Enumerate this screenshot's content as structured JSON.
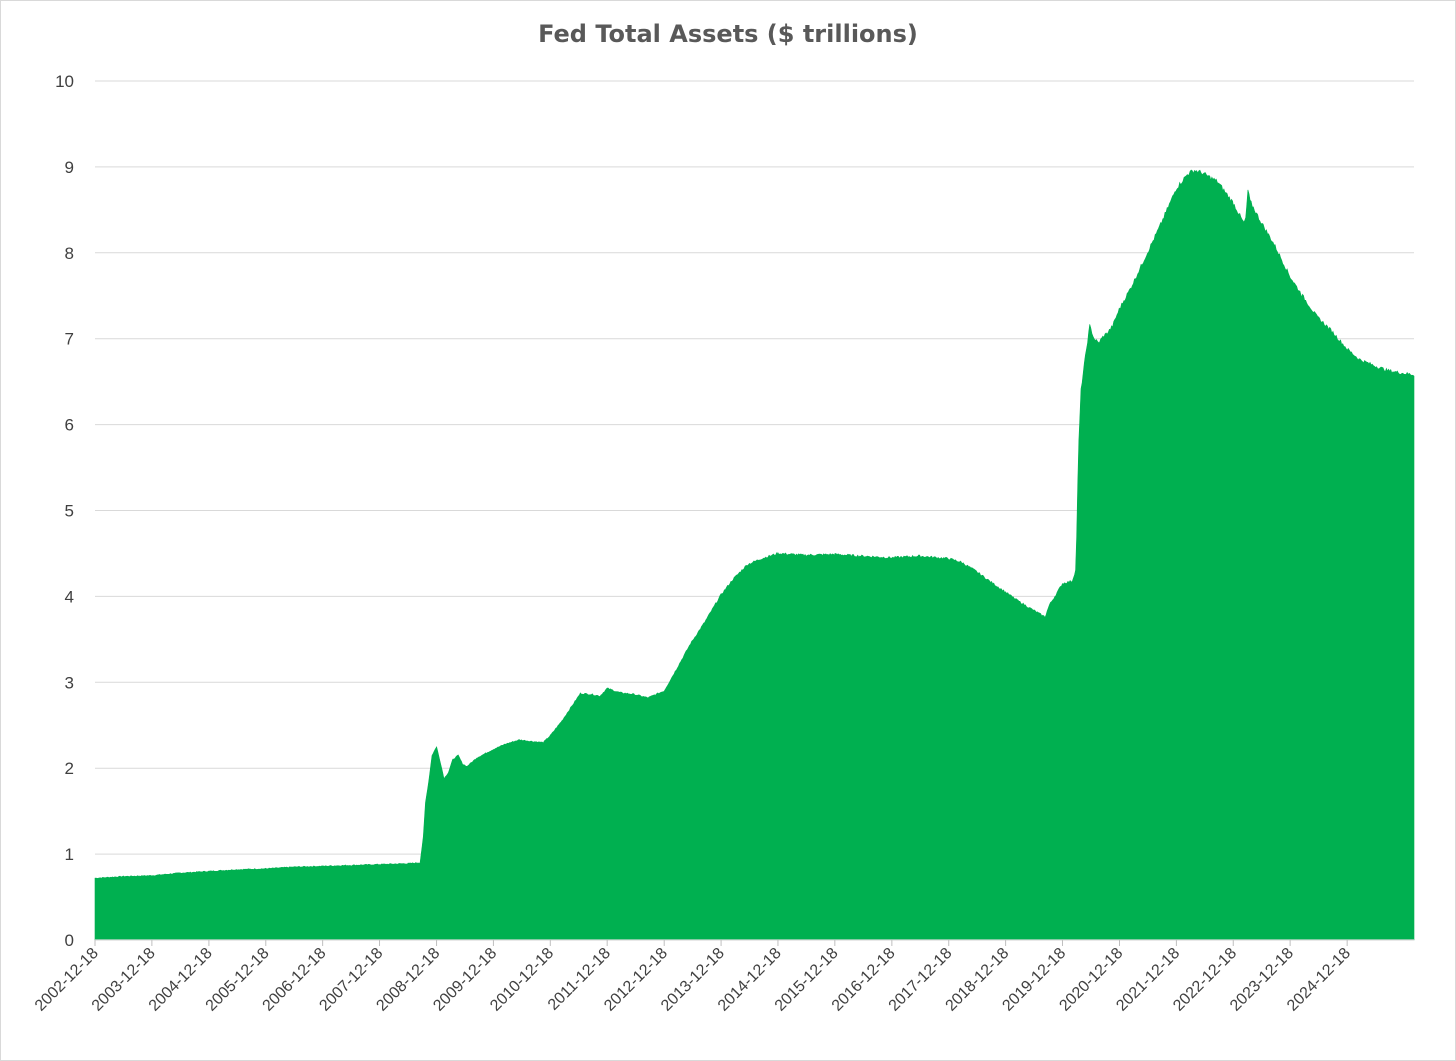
{
  "chart_data": {
    "type": "area",
    "title": "Fed Total Assets ($ trillions)",
    "xlabel": "",
    "ylabel": "",
    "ylim": [
      0,
      10
    ],
    "y_ticks": [
      "0",
      "1",
      "2",
      "3",
      "4",
      "5",
      "6",
      "7",
      "8",
      "9",
      "10"
    ],
    "x_ticks": [
      "2002-12-18",
      "2003-12-18",
      "2004-12-18",
      "2005-12-18",
      "2006-12-18",
      "2007-12-18",
      "2008-12-18",
      "2009-12-18",
      "2010-12-18",
      "2011-12-18",
      "2012-12-18",
      "2013-12-18",
      "2014-12-18",
      "2015-12-18",
      "2016-12-18",
      "2017-12-18",
      "2018-12-18",
      "2019-12-18",
      "2020-12-18",
      "2021-12-18",
      "2022-12-18",
      "2023-12-18",
      "2024-12-18"
    ],
    "x_range": [
      "2002-12-18",
      "2026-02-20"
    ],
    "grid": "horizontal",
    "legend": "none",
    "color": "#00b050",
    "series": [
      {
        "name": "",
        "points": [
          [
            "2002-12-18",
            0.72
          ],
          [
            "2003-06-18",
            0.74
          ],
          [
            "2003-12-18",
            0.75
          ],
          [
            "2004-06-18",
            0.78
          ],
          [
            "2004-12-18",
            0.8
          ],
          [
            "2005-06-18",
            0.82
          ],
          [
            "2005-12-18",
            0.83
          ],
          [
            "2006-06-18",
            0.85
          ],
          [
            "2006-12-18",
            0.86
          ],
          [
            "2007-06-18",
            0.87
          ],
          [
            "2007-12-18",
            0.88
          ],
          [
            "2008-06-18",
            0.89
          ],
          [
            "2008-09-03",
            0.9
          ],
          [
            "2008-09-24",
            1.2
          ],
          [
            "2008-10-08",
            1.6
          ],
          [
            "2008-10-29",
            1.85
          ],
          [
            "2008-11-19",
            2.15
          ],
          [
            "2008-12-18",
            2.25
          ],
          [
            "2009-01-14",
            2.05
          ],
          [
            "2009-02-04",
            1.88
          ],
          [
            "2009-03-04",
            1.95
          ],
          [
            "2009-04-01",
            2.1
          ],
          [
            "2009-05-06",
            2.15
          ],
          [
            "2009-06-03",
            2.05
          ],
          [
            "2009-07-01",
            2.02
          ],
          [
            "2009-09-02",
            2.12
          ],
          [
            "2009-12-18",
            2.22
          ],
          [
            "2010-03-03",
            2.28
          ],
          [
            "2010-06-02",
            2.33
          ],
          [
            "2010-09-01",
            2.31
          ],
          [
            "2010-11-03",
            2.3
          ],
          [
            "2010-12-18",
            2.38
          ],
          [
            "2011-03-02",
            2.55
          ],
          [
            "2011-05-04",
            2.72
          ],
          [
            "2011-06-29",
            2.87
          ],
          [
            "2011-09-07",
            2.86
          ],
          [
            "2011-11-02",
            2.84
          ],
          [
            "2011-12-18",
            2.93
          ],
          [
            "2012-03-07",
            2.88
          ],
          [
            "2012-06-06",
            2.86
          ],
          [
            "2012-09-05",
            2.82
          ],
          [
            "2012-12-18",
            2.9
          ],
          [
            "2013-03-06",
            3.15
          ],
          [
            "2013-06-05",
            3.45
          ],
          [
            "2013-09-04",
            3.7
          ],
          [
            "2013-12-18",
            4.02
          ],
          [
            "2014-03-05",
            4.2
          ],
          [
            "2014-06-04",
            4.37
          ],
          [
            "2014-09-03",
            4.44
          ],
          [
            "2014-12-18",
            4.5
          ],
          [
            "2015-06-03",
            4.48
          ],
          [
            "2015-12-18",
            4.49
          ],
          [
            "2016-06-01",
            4.47
          ],
          [
            "2016-12-18",
            4.45
          ],
          [
            "2017-06-07",
            4.47
          ],
          [
            "2017-12-18",
            4.44
          ],
          [
            "2018-03-07",
            4.4
          ],
          [
            "2018-06-06",
            4.3
          ],
          [
            "2018-09-05",
            4.18
          ],
          [
            "2018-12-18",
            4.05
          ],
          [
            "2019-03-06",
            3.95
          ],
          [
            "2019-06-05",
            3.85
          ],
          [
            "2019-08-28",
            3.76
          ],
          [
            "2019-09-25",
            3.9
          ],
          [
            "2019-10-30",
            4.0
          ],
          [
            "2019-12-18",
            4.15
          ],
          [
            "2020-02-19",
            4.18
          ],
          [
            "2020-03-11",
            4.3
          ],
          [
            "2020-03-18",
            4.7
          ],
          [
            "2020-03-25",
            5.3
          ],
          [
            "2020-04-01",
            5.8
          ],
          [
            "2020-04-15",
            6.4
          ],
          [
            "2020-05-06",
            6.7
          ],
          [
            "2020-06-10",
            7.15
          ],
          [
            "2020-07-08",
            7.0
          ],
          [
            "2020-08-05",
            6.95
          ],
          [
            "2020-09-02",
            7.02
          ],
          [
            "2020-10-07",
            7.08
          ],
          [
            "2020-11-04",
            7.15
          ],
          [
            "2020-12-18",
            7.35
          ],
          [
            "2021-03-03",
            7.6
          ],
          [
            "2021-06-02",
            7.95
          ],
          [
            "2021-09-01",
            8.3
          ],
          [
            "2021-12-18",
            8.75
          ],
          [
            "2022-03-02",
            8.92
          ],
          [
            "2022-04-13",
            8.96
          ],
          [
            "2022-06-01",
            8.93
          ],
          [
            "2022-09-07",
            8.83
          ],
          [
            "2022-12-18",
            8.58
          ],
          [
            "2023-02-22",
            8.35
          ],
          [
            "2023-03-08",
            8.39
          ],
          [
            "2023-03-22",
            8.73
          ],
          [
            "2023-04-05",
            8.6
          ],
          [
            "2023-06-07",
            8.38
          ],
          [
            "2023-09-06",
            8.1
          ],
          [
            "2023-12-18",
            7.72
          ],
          [
            "2024-03-06",
            7.5
          ],
          [
            "2024-06-05",
            7.26
          ],
          [
            "2024-09-04",
            7.1
          ],
          [
            "2024-12-18",
            6.88
          ],
          [
            "2025-03-05",
            6.76
          ],
          [
            "2025-06-04",
            6.69
          ],
          [
            "2025-09-03",
            6.63
          ],
          [
            "2025-12-03",
            6.6
          ],
          [
            "2026-02-20",
            6.58
          ]
        ]
      }
    ]
  }
}
